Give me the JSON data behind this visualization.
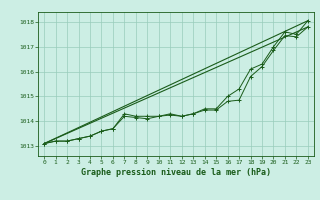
{
  "title": "Graphe pression niveau de la mer (hPa)",
  "bg_color": "#cceee4",
  "grid_color": "#99ccbb",
  "line_color": "#1a5c1a",
  "x_ticks": [
    0,
    1,
    2,
    3,
    4,
    5,
    6,
    7,
    8,
    9,
    10,
    11,
    12,
    13,
    14,
    15,
    16,
    17,
    18,
    19,
    20,
    21,
    22,
    23
  ],
  "y_ticks": [
    1013,
    1014,
    1015,
    1016,
    1017,
    1018
  ],
  "xlim": [
    -0.5,
    23.5
  ],
  "ylim": [
    1012.6,
    1018.4
  ],
  "series1": [
    1013.1,
    1013.2,
    1013.2,
    1013.3,
    1013.4,
    1013.6,
    1013.7,
    1014.2,
    1014.15,
    1014.1,
    1014.2,
    1014.25,
    1014.2,
    1014.3,
    1014.45,
    1014.45,
    1014.8,
    1014.85,
    1015.8,
    1016.2,
    1016.85,
    1017.45,
    1017.4,
    1017.8
  ],
  "series2": [
    1013.1,
    1013.2,
    1013.2,
    1013.3,
    1013.4,
    1013.6,
    1013.7,
    1014.3,
    1014.2,
    1014.2,
    1014.2,
    1014.3,
    1014.2,
    1014.3,
    1014.5,
    1014.5,
    1015.0,
    1015.3,
    1016.1,
    1016.3,
    1017.0,
    1017.6,
    1017.5,
    1018.05
  ],
  "line1_x": [
    0,
    23
  ],
  "line1_y": [
    1013.1,
    1017.8
  ],
  "line2_x": [
    0,
    23
  ],
  "line2_y": [
    1013.1,
    1018.05
  ]
}
